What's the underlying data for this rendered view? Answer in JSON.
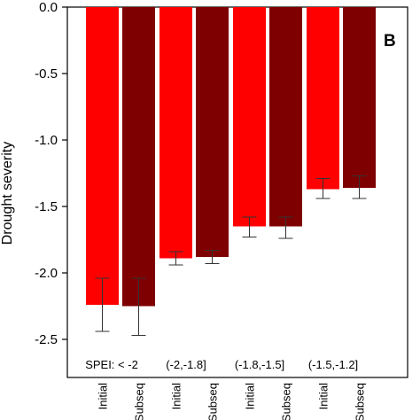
{
  "chart_data": {
    "type": "bar",
    "panel_label": "B",
    "ylabel": "Drought severity",
    "ylim": [
      -2.6,
      0.0
    ],
    "yticks": [
      "0.0",
      "-0.5",
      "-1.0",
      "-1.5",
      "-2.0",
      "-2.5"
    ],
    "ytick_values": [
      0.0,
      -0.5,
      -1.0,
      -1.5,
      -2.0,
      -2.5
    ],
    "grid": false,
    "categories": [
      "Initial",
      "Subseq",
      "Initial",
      "Subseq",
      "Initial",
      "Subseq",
      "Initial",
      "Subseq"
    ],
    "groups": [
      "SPEI: < -2",
      "(-2,-1.8]",
      "(-1.8,-1.5]",
      "(-1.5,-1.2]"
    ],
    "values": [
      -2.24,
      -2.25,
      -1.89,
      -1.88,
      -1.65,
      -1.65,
      -1.37,
      -1.36
    ],
    "error_low": [
      -2.44,
      -2.47,
      -1.94,
      -1.93,
      -1.73,
      -1.74,
      -1.44,
      -1.44
    ],
    "error_high": [
      -2.04,
      -2.04,
      -1.84,
      -1.83,
      -1.58,
      -1.58,
      -1.29,
      -1.27
    ],
    "colors": [
      "#ff0000",
      "#7f0000",
      "#ff0000",
      "#7f0000",
      "#ff0000",
      "#7f0000",
      "#ff0000",
      "#7f0000"
    ]
  }
}
